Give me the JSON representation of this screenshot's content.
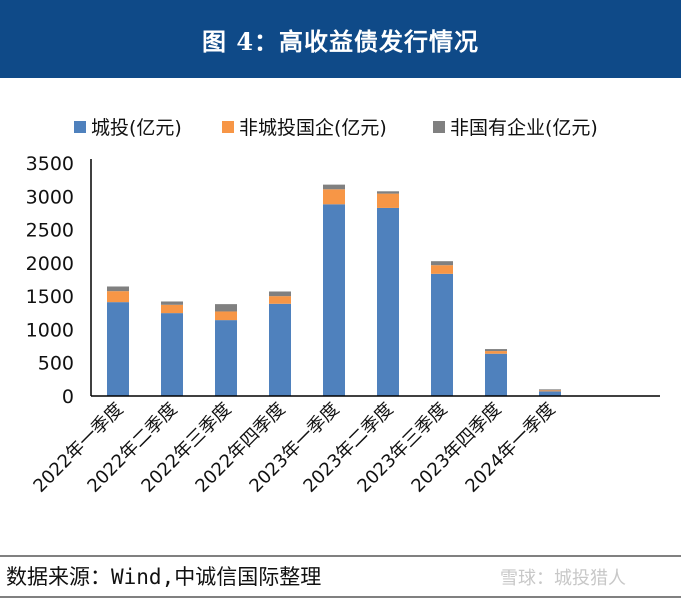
{
  "header": {
    "title": "图 4：高收益债发行情况"
  },
  "footer": {
    "source": "数据来源：Wind,中诚信国际整理",
    "watermark": "雪球：城投猎人"
  },
  "chart_data": {
    "type": "bar",
    "stacked": true,
    "title": "",
    "xlabel": "",
    "ylabel": "",
    "ylim": [
      0,
      3500
    ],
    "yticks": [
      0,
      500,
      1000,
      1500,
      2000,
      2500,
      3000,
      3500
    ],
    "grid": false,
    "legend": "top",
    "categories": [
      "2022年一季度",
      "2022年二季度",
      "2022年三季度",
      "2022年四季度",
      "2023年一季度",
      "2023年二季度",
      "2023年三季度",
      "2023年四季度",
      "2024年一季度"
    ],
    "series": [
      {
        "name": "城投(亿元)",
        "color": "#4f81bd",
        "values": [
          1410,
          1245,
          1140,
          1385,
          2880,
          2825,
          1835,
          635,
          70
        ]
      },
      {
        "name": "非城投国企(亿元)",
        "color": "#f79646",
        "values": [
          165,
          125,
          130,
          115,
          225,
          215,
          130,
          40,
          15
        ]
      },
      {
        "name": "非国有企业(亿元)",
        "color": "#808080",
        "values": [
          70,
          50,
          110,
          70,
          70,
          35,
          60,
          30,
          15
        ]
      }
    ]
  }
}
